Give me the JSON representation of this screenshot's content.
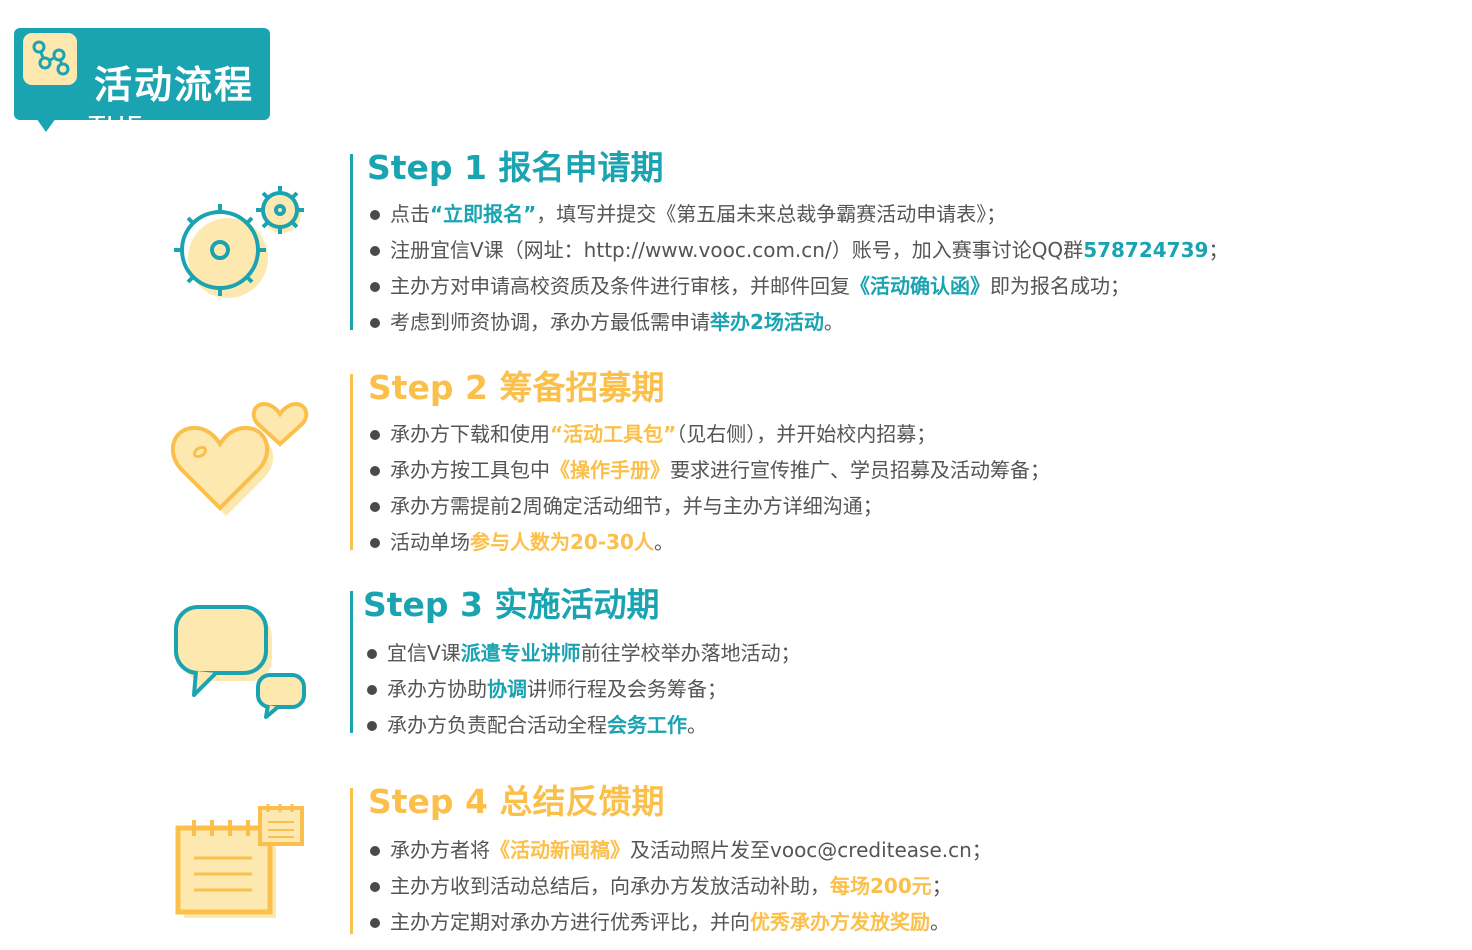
{
  "header": {
    "title": "活动流程",
    "subtitle": "THE PROCESS",
    "icon": "network-nodes-icon"
  },
  "colors": {
    "teal": "#1aa3b1",
    "gold": "#fbc04b",
    "light_yellow": "#fde9b0"
  },
  "steps": [
    {
      "title": "Step 1 报名申请期",
      "icon": "gear-icon",
      "items": [
        {
          "before": "点击",
          "highlight": "“立即报名”",
          "after": "，填写并提交《第五届未来总裁争霸赛活动申请表》；"
        },
        {
          "before": "注册宜信V课（网址：http://www.vooc.com.cn/）账号，加入赛事讨论QQ群",
          "highlight": "578724739",
          "after": "；"
        },
        {
          "before": "主办方对申请高校资质及条件进行审核，并邮件回复",
          "highlight": "《活动确认函》",
          "after": "即为报名成功；"
        },
        {
          "before": "考虑到师资协调，承办方最低需申请",
          "highlight": "举办2场活动",
          "after": "。"
        }
      ]
    },
    {
      "title": "Step 2 筹备招募期",
      "icon": "heart-icon",
      "items": [
        {
          "before": "承办方下载和使用",
          "highlight": "“活动工具包”",
          "after": "（见右侧），并开始校内招募；"
        },
        {
          "before": "承办方按工具包中",
          "highlight": "《操作手册》",
          "after": "要求进行宣传推广、学员招募及活动筹备；"
        },
        {
          "before": "承办方需提前2周确定活动细节，并与主办方详细沟通；",
          "highlight": "",
          "after": ""
        },
        {
          "before": "活动单场",
          "highlight": "参与人数为20-30人",
          "after": "。"
        }
      ]
    },
    {
      "title": "Step 3 实施活动期",
      "icon": "chat-bubble-icon",
      "items": [
        {
          "before": "宜信V课",
          "highlight": "派遣专业讲师",
          "after": "前往学校举办落地活动；"
        },
        {
          "before": "承办方协助",
          "highlight": "协调",
          "after": "讲师行程及会务筹备；"
        },
        {
          "before": "承办方负责配合活动全程",
          "highlight": "会务工作",
          "after": "。"
        }
      ]
    },
    {
      "title": "Step 4 总结反馈期",
      "icon": "calendar-icon",
      "items": [
        {
          "before": "承办方者将",
          "highlight": "《活动新闻稿》",
          "after": "及活动照片发至vooc@creditease.cn；"
        },
        {
          "before": "主办方收到活动总结后，向承办方发放活动补助，",
          "highlight": "每场200元",
          "after": "；"
        },
        {
          "before": "主办方定期对承办方进行优秀评比，并向",
          "highlight": "优秀承办方发放奖励",
          "after": "。"
        }
      ]
    }
  ]
}
